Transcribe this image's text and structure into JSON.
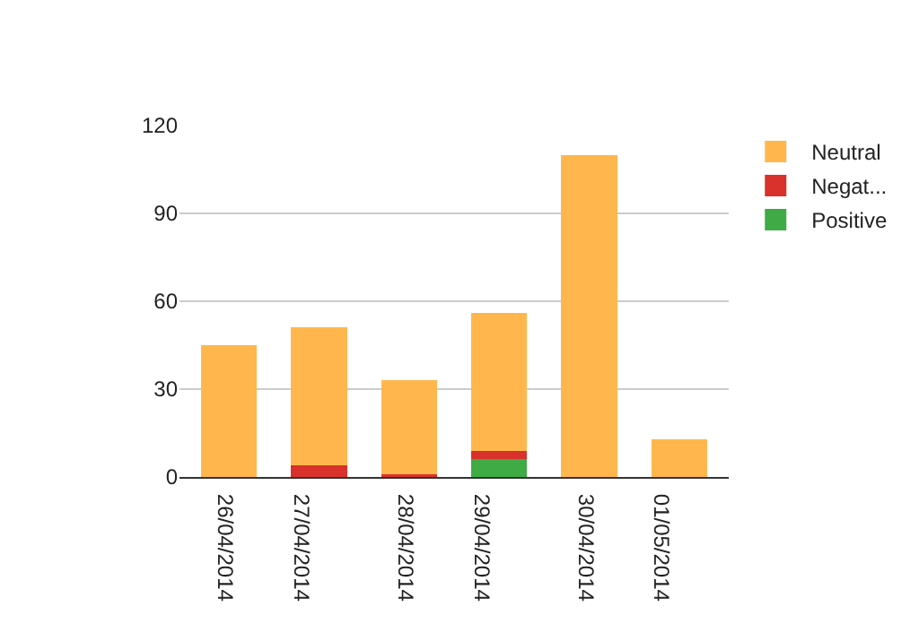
{
  "chart_data": {
    "type": "bar",
    "stacked": true,
    "categories": [
      "26/04/2014",
      "27/04/2014",
      "28/04/2014",
      "29/04/2014",
      "30/04/2014",
      "01/05/2014"
    ],
    "series": [
      {
        "name": "Positive",
        "color": "#3fab45",
        "values": [
          0,
          0,
          0,
          6,
          0,
          0
        ]
      },
      {
        "name": "Negat...",
        "color": "#d9312b",
        "values": [
          0,
          4,
          1,
          3,
          0,
          0
        ]
      },
      {
        "name": "Neutral",
        "color": "#ffb74d",
        "values": [
          45,
          47,
          32,
          47,
          110,
          13
        ]
      }
    ],
    "ylim": [
      0,
      120
    ],
    "yticks": [
      0,
      30,
      60,
      90,
      120
    ],
    "grid": "y",
    "legend": "top right"
  }
}
